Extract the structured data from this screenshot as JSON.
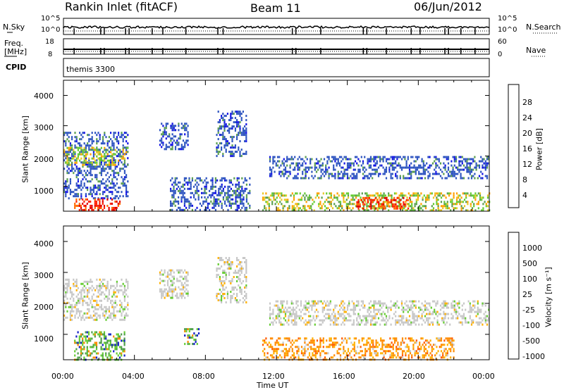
{
  "header": {
    "station": "Rankin Inlet (fitACF)",
    "beam": "Beam 11",
    "date": "06/Jun/2012"
  },
  "top_strips": {
    "nsky_label": "N.Sky",
    "nsearch_label": "N.Search",
    "n_left_ticks": [
      "10^5",
      "10^0"
    ],
    "n_right_ticks": [
      "10^5",
      "10^0"
    ],
    "freq_label": "Freq.",
    "freq_unit": "[MHz]",
    "freq_ticks": [
      "18",
      "8"
    ],
    "nave_label": "Nave",
    "nave_ticks": [
      "60",
      "0"
    ],
    "cpid_label": "CPID",
    "cpid_value": "themis 3300"
  },
  "axes": {
    "ylabel": "Slant Range [km]",
    "xlabel": "Time UT",
    "y_ticks": [
      "1000",
      "2000",
      "3000",
      "4000"
    ],
    "x_ticks": [
      "00:00",
      "04:00",
      "08:00",
      "12:00",
      "16:00",
      "20:00",
      "00:00"
    ]
  },
  "chart_data": [
    {
      "type": "heatmap",
      "quantity": "power",
      "xlabel": "Time UT",
      "ylabel": "Slant Range [km]",
      "xlim_hours": [
        0,
        24
      ],
      "ylim_km": [
        180,
        4500
      ],
      "colorbar": {
        "label": "Power [dB]",
        "ticks": [
          "4",
          "8",
          "12",
          "16",
          "20",
          "24",
          "28"
        ],
        "colors": [
          "#1414e6",
          "#2f55c0",
          "#2e7d5a",
          "#5a9e4e",
          "#66cc33",
          "#e8c828",
          "#ffa000",
          "#ff6a00",
          "#ff2200",
          "#e00000"
        ]
      },
      "regions": [
        {
          "t0": 0.0,
          "t1": 3.6,
          "r0": 600,
          "r1": 2800,
          "level": "low"
        },
        {
          "t0": 0.0,
          "t1": 3.6,
          "r0": 1700,
          "r1": 2300,
          "level": "mid"
        },
        {
          "t0": 0.6,
          "t1": 3.2,
          "r0": 200,
          "r1": 600,
          "level": "high"
        },
        {
          "t0": 5.4,
          "t1": 7.0,
          "r0": 2200,
          "r1": 3100,
          "level": "low"
        },
        {
          "t0": 6.0,
          "t1": 10.5,
          "r0": 200,
          "r1": 1300,
          "level": "low"
        },
        {
          "t0": 8.6,
          "t1": 10.3,
          "r0": 2000,
          "r1": 3500,
          "level": "low"
        },
        {
          "t0": 11.6,
          "t1": 24.0,
          "r0": 1300,
          "r1": 2000,
          "level": "low"
        },
        {
          "t0": 11.2,
          "t1": 24.0,
          "r0": 200,
          "r1": 800,
          "level": "mid"
        },
        {
          "t0": 16.5,
          "t1": 19.5,
          "r0": 250,
          "r1": 650,
          "level": "high"
        }
      ]
    },
    {
      "type": "heatmap",
      "quantity": "velocity",
      "xlabel": "Time UT",
      "ylabel": "Slant Range [km]",
      "xlim_hours": [
        0,
        24
      ],
      "ylim_km": [
        180,
        4500
      ],
      "colorbar": {
        "label": "Velocity [m s⁻¹]",
        "ticks": [
          "1000",
          "500",
          "100",
          "25",
          "-25",
          "-100",
          "-500",
          "-1000"
        ],
        "colors": [
          "#1420c8",
          "#2f55c0",
          "#2e7d5a",
          "#4f9f4a",
          "#66cc33",
          "#c8c8c8",
          "#ffb000",
          "#ff8a00",
          "#ff5a00",
          "#e00000"
        ]
      },
      "regions": [
        {
          "t0": 0.0,
          "t1": 3.6,
          "r0": 1500,
          "r1": 2800,
          "level": "gray"
        },
        {
          "t0": 0.6,
          "t1": 3.4,
          "r0": 200,
          "r1": 1100,
          "level": "pos"
        },
        {
          "t0": 5.4,
          "t1": 7.0,
          "r0": 2200,
          "r1": 3100,
          "level": "gray"
        },
        {
          "t0": 6.8,
          "t1": 7.6,
          "r0": 700,
          "r1": 1200,
          "level": "pos"
        },
        {
          "t0": 8.6,
          "t1": 10.3,
          "r0": 2000,
          "r1": 3500,
          "level": "gray"
        },
        {
          "t0": 11.6,
          "t1": 24.0,
          "r0": 1300,
          "r1": 2100,
          "level": "gray"
        },
        {
          "t0": 11.2,
          "t1": 22.0,
          "r0": 200,
          "r1": 900,
          "level": "neg"
        }
      ]
    }
  ]
}
